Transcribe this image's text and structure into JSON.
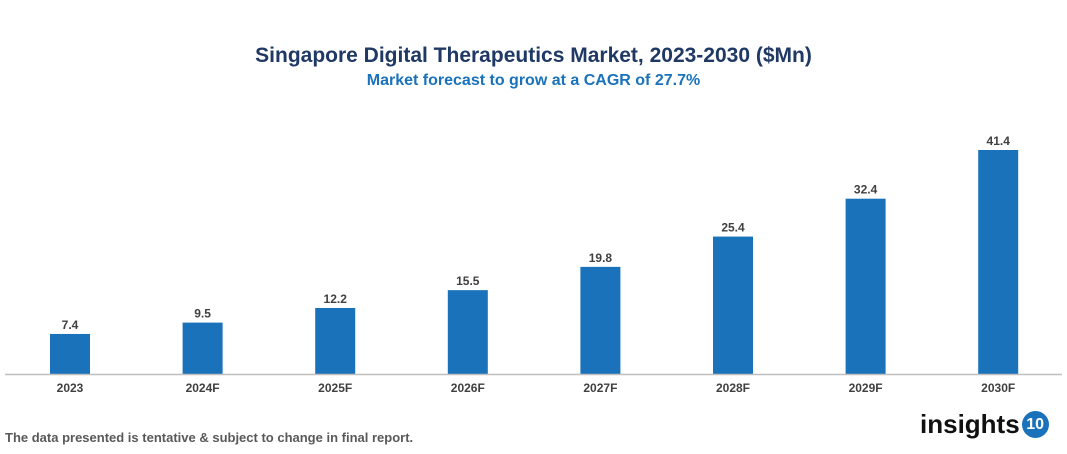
{
  "chart_data": {
    "type": "bar",
    "title": "Singapore Digital Therapeutics Market, 2023-2030 ($Mn)",
    "subtitle": "Market forecast to grow at a CAGR of 27.7%",
    "categories": [
      "2023",
      "2024F",
      "2025F",
      "2026F",
      "2027F",
      "2028F",
      "2029F",
      "2030F"
    ],
    "values": [
      7.4,
      9.5,
      12.2,
      15.5,
      19.8,
      25.4,
      32.4,
      41.4
    ],
    "ylim": [
      0,
      45
    ],
    "grid": false,
    "bar_color": "#1a72bb"
  },
  "footer": {
    "note": "The data presented is tentative & subject to change in final report.",
    "logo_text": "insights",
    "logo_badge": "10"
  }
}
